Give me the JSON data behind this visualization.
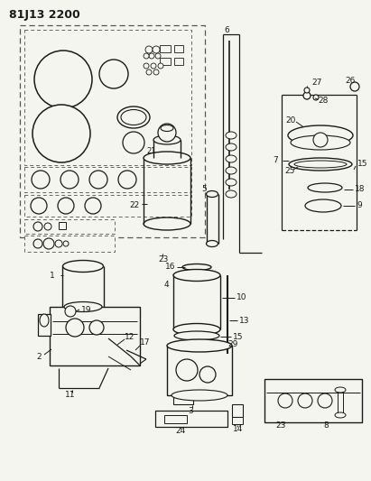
{
  "title": "81J13 2200",
  "bg_color": "#f5f5f0",
  "line_color": "#1a1a1a",
  "fig_width": 4.11,
  "fig_height": 5.33
}
